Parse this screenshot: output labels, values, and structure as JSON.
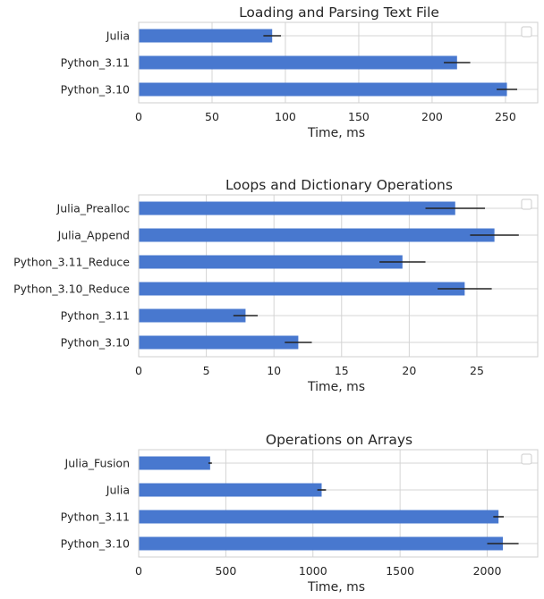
{
  "chart_data": [
    {
      "type": "bar",
      "orientation": "horizontal",
      "title": "Loading and Parsing Text File",
      "xlabel": "Time, ms",
      "ylabel": "",
      "xlim": [
        0,
        272
      ],
      "xticks": [
        0,
        50,
        100,
        150,
        200,
        250
      ],
      "categories": [
        "Julia",
        "Python_3.11",
        "Python_3.10"
      ],
      "values": [
        91,
        217,
        251
      ],
      "errors": [
        6,
        9,
        7
      ],
      "grid": true,
      "legend": "top-right",
      "bar_color": "#4878cf"
    },
    {
      "type": "bar",
      "orientation": "horizontal",
      "title": "Loops and Dictionary Operations",
      "xlabel": "Time, ms",
      "ylabel": "",
      "xlim": [
        0,
        29.5
      ],
      "xticks": [
        0,
        5,
        10,
        15,
        20,
        25
      ],
      "categories": [
        "Julia_Prealloc",
        "Julia_Append",
        "Python_3.11_Reduce",
        "Python_3.10_Reduce",
        "Python_3.11",
        "Python_3.10"
      ],
      "values": [
        23.4,
        26.3,
        19.5,
        24.1,
        7.9,
        11.8
      ],
      "errors": [
        2.2,
        1.8,
        1.7,
        2.0,
        0.9,
        1.0
      ],
      "grid": true,
      "legend": "top-right",
      "bar_color": "#4878cf"
    },
    {
      "type": "bar",
      "orientation": "horizontal",
      "title": "Operations on Arrays",
      "xlabel": "Time, ms",
      "ylabel": "",
      "xlim": [
        0,
        2290
      ],
      "xticks": [
        0,
        500,
        1000,
        1500,
        2000
      ],
      "categories": [
        "Julia_Fusion",
        "Julia",
        "Python_3.11",
        "Python_3.10"
      ],
      "values": [
        410,
        1050,
        2065,
        2090
      ],
      "errors": [
        10,
        25,
        30,
        90
      ],
      "grid": true,
      "legend": "top-right",
      "bar_color": "#4878cf"
    }
  ]
}
